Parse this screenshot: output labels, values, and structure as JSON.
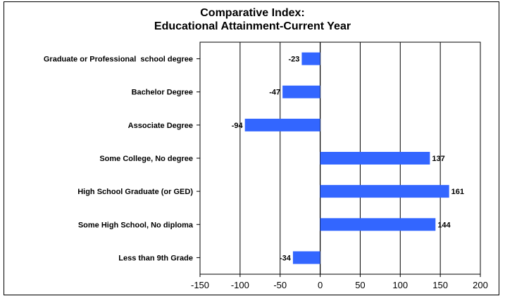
{
  "chart_data": {
    "type": "bar",
    "orientation": "horizontal",
    "title_line1": "Comparative Index:",
    "title_line2": "Educational Attainment-Current Year",
    "categories": [
      "Graduate or Professional  school degree",
      "Bachelor Degree",
      "Associate Degree",
      "Some College, No degree",
      "High School Graduate (or GED)",
      "Some High School, No diploma",
      "Less than 9th Grade"
    ],
    "values": [
      -23,
      -47,
      -94,
      137,
      161,
      144,
      -34
    ],
    "data_labels": [
      "-23",
      "-47",
      "-94",
      "137",
      "161",
      "144",
      "-34"
    ],
    "xlim": [
      -150,
      200
    ],
    "xticks": [
      -150,
      -100,
      -50,
      0,
      50,
      100,
      150,
      200
    ],
    "xtick_labels": [
      "-150",
      "-100",
      "-50",
      "0",
      "50",
      "100",
      "150",
      "200"
    ],
    "grid": "vertical",
    "legend": "none",
    "bar_color": "#3366ff"
  }
}
